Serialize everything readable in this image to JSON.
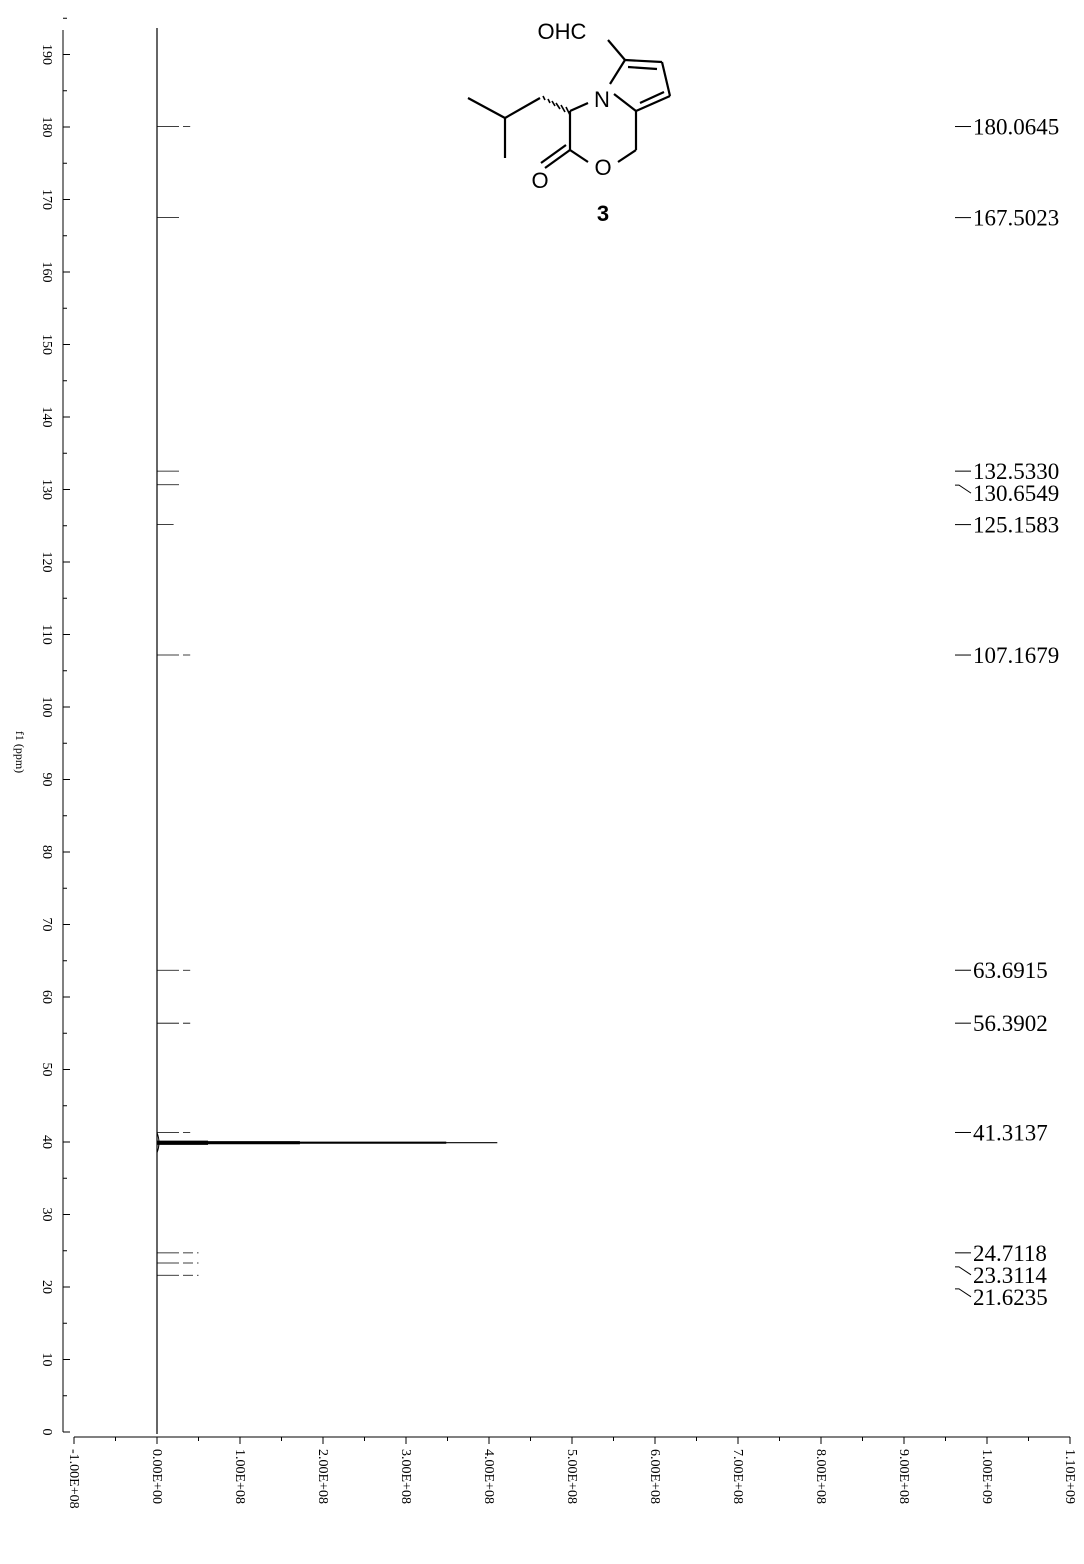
{
  "chart_data": {
    "type": "line",
    "orientation": "rotated-90",
    "ylabel": "f1 (ppm)",
    "ppm_axis": {
      "range": [
        0,
        197
      ],
      "ticks": [
        0,
        10,
        20,
        30,
        40,
        50,
        60,
        70,
        80,
        90,
        100,
        110,
        120,
        130,
        140,
        150,
        160,
        170,
        180,
        190
      ]
    },
    "intensity_axis": {
      "range": [
        -100000000,
        1100000000
      ],
      "ticks": [
        {
          "value": -100000000,
          "label": "-1.00E+08"
        },
        {
          "value": 0,
          "label": "0.00E+00"
        },
        {
          "value": 100000000,
          "label": "1.00E+08"
        },
        {
          "value": 200000000,
          "label": "2.00E+08"
        },
        {
          "value": 300000000,
          "label": "3.00E+08"
        },
        {
          "value": 400000000,
          "label": "4.00E+08"
        },
        {
          "value": 500000000,
          "label": "5.00E+08"
        },
        {
          "value": 600000000,
          "label": "6.00E+08"
        },
        {
          "value": 700000000,
          "label": "7.00E+08"
        },
        {
          "value": 800000000,
          "label": "8.00E+08"
        },
        {
          "value": 900000000,
          "label": "9.00E+08"
        },
        {
          "value": 1000000000,
          "label": "1.00E+09"
        },
        {
          "value": 1100000000,
          "label": "1.10E+09"
        }
      ]
    },
    "peaks": [
      {
        "ppm": 180.0645,
        "intensity": 40000000,
        "label": "180.0645"
      },
      {
        "ppm": 167.5023,
        "intensity": 30000000,
        "label": "167.5023"
      },
      {
        "ppm": 132.533,
        "intensity": 30000000,
        "label": "132.5330"
      },
      {
        "ppm": 130.6549,
        "intensity": 30000000,
        "label": "130.6549"
      },
      {
        "ppm": 125.1583,
        "intensity": 20000000,
        "label": "125.1583"
      },
      {
        "ppm": 107.1679,
        "intensity": 40000000,
        "label": "107.1679"
      },
      {
        "ppm": 63.6915,
        "intensity": 40000000,
        "label": "63.6915"
      },
      {
        "ppm": 56.3902,
        "intensity": 40000000,
        "label": "56.3902"
      },
      {
        "ppm": 41.3137,
        "intensity": 40000000,
        "label": "41.3137"
      },
      {
        "ppm": 24.7118,
        "intensity": 50000000,
        "label": "24.7118"
      },
      {
        "ppm": 23.3114,
        "intensity": 50000000,
        "label": "23.3114"
      },
      {
        "ppm": 21.6235,
        "intensity": 50000000,
        "label": "21.6235"
      }
    ],
    "solvent_peak": {
      "ppm": 39.9,
      "intensity": 410000000
    },
    "grid": false
  },
  "molecule": {
    "atoms": [
      "OHC",
      "N",
      "O",
      "O"
    ],
    "compound_number": "3"
  }
}
